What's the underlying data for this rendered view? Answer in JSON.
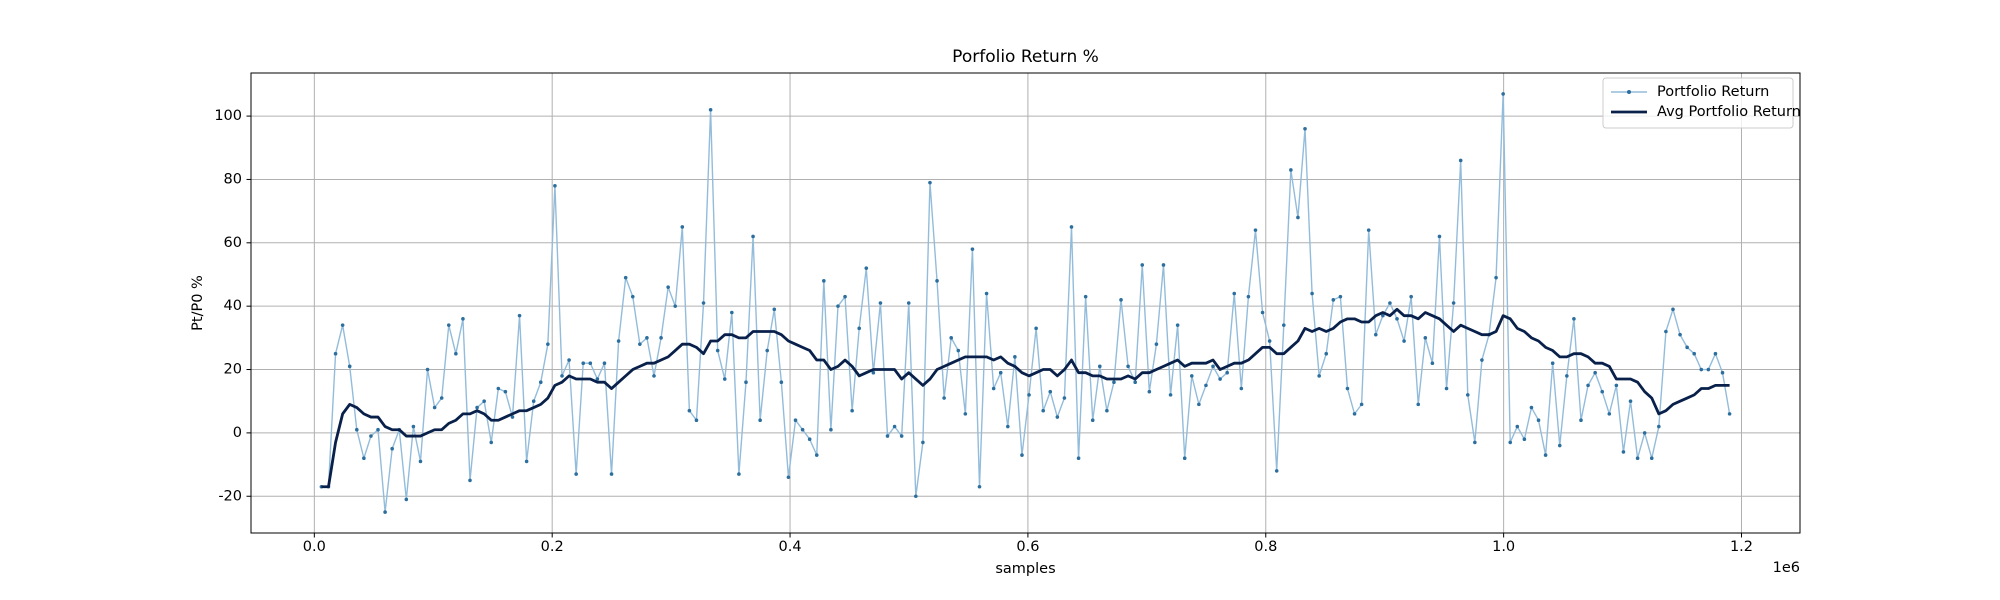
{
  "chart_data": {
    "type": "line",
    "title": "Porfolio Return %",
    "x_label": "samples",
    "y_label": "Pt/P0 %",
    "x_offset_label": "1e6",
    "x": [
      5950,
      11900,
      17850,
      23800,
      29750,
      35700,
      41650,
      47600,
      53550,
      59500,
      65450,
      71400,
      77350,
      83300,
      89250,
      95200,
      101150,
      107100,
      113050,
      119000,
      124950,
      130900,
      136850,
      142800,
      148750,
      154700,
      160650,
      166600,
      172550,
      178500,
      184450,
      190400,
      196350,
      202300,
      208250,
      214200,
      220150,
      226100,
      232050,
      238000,
      243950,
      249900,
      255850,
      261800,
      267750,
      273700,
      279650,
      285600,
      291550,
      297500,
      303450,
      309400,
      315350,
      321300,
      327250,
      333200,
      339150,
      345100,
      351050,
      357000,
      362950,
      368900,
      374850,
      380800,
      386750,
      392700,
      398650,
      404600,
      410550,
      416500,
      422450,
      428400,
      434350,
      440300,
      446250,
      452200,
      458150,
      464100,
      470050,
      476000,
      481950,
      487900,
      493850,
      499800,
      505750,
      511700,
      517650,
      523600,
      529550,
      535500,
      541450,
      547400,
      553350,
      559300,
      565250,
      571200,
      577150,
      583100,
      589050,
      595000,
      600950,
      606900,
      612850,
      618800,
      624750,
      630700,
      636650,
      642600,
      648550,
      654500,
      660450,
      666400,
      672350,
      678300,
      684250,
      690200,
      696150,
      702100,
      708050,
      714000,
      719950,
      725900,
      731850,
      737800,
      743750,
      749700,
      755650,
      761600,
      767550,
      773500,
      779450,
      785400,
      791350,
      797300,
      803250,
      809200,
      815150,
      821100,
      827050,
      833000,
      838950,
      844900,
      850850,
      856800,
      862750,
      868700,
      874650,
      880600,
      886550,
      892500,
      898450,
      904400,
      910350,
      916300,
      922250,
      928200,
      934150,
      940100,
      946050,
      952000,
      957950,
      963900,
      969850,
      975800,
      981750,
      987700,
      993650,
      999600,
      1005550,
      1011500,
      1017450,
      1023400,
      1029350,
      1035300,
      1041250,
      1047200,
      1053150,
      1059100,
      1065050,
      1071000,
      1076950,
      1082900,
      1088850,
      1094800,
      1100750,
      1106700,
      1112650,
      1118600,
      1124550,
      1130500,
      1136450,
      1142400,
      1148350,
      1154300,
      1160250,
      1166200,
      1172150,
      1178100,
      1184050,
      1190000
    ],
    "series": [
      {
        "name": "Portfolio Return",
        "color": "#93bcdb",
        "marker_color": "#2c6f9f",
        "marker": true,
        "line_width": 1.4,
        "values": [
          -17,
          -17,
          25,
          34,
          21,
          1,
          -8,
          -1,
          1,
          -25,
          -5,
          1,
          -21,
          2,
          -9,
          20,
          8,
          11,
          34,
          25,
          36,
          -15,
          8,
          10,
          -3,
          14,
          13,
          5,
          37,
          -9,
          10,
          16,
          28,
          78,
          18,
          23,
          -13,
          22,
          22,
          17,
          22,
          -13,
          29,
          49,
          43,
          28,
          30,
          18,
          30,
          46,
          40,
          65,
          7,
          4,
          41,
          102,
          26,
          17,
          38,
          -13,
          16,
          62,
          4,
          26,
          39,
          16,
          -14,
          4,
          1,
          -2,
          -7,
          48,
          1,
          40,
          43,
          7,
          33,
          52,
          19,
          41,
          -1,
          2,
          -1,
          41,
          -20,
          -3,
          79,
          48,
          11,
          30,
          26,
          6,
          58,
          -17,
          44,
          14,
          19,
          2,
          24,
          -7,
          12,
          33,
          7,
          13,
          5,
          11,
          65,
          -8,
          43,
          4,
          21,
          7,
          16,
          42,
          21,
          16,
          53,
          13,
          28,
          53,
          12,
          34,
          -8,
          18,
          9,
          15,
          21,
          17,
          19,
          44,
          14,
          43,
          64,
          38,
          29,
          -12,
          34,
          83,
          68,
          96,
          44,
          18,
          25,
          42,
          43,
          14,
          6,
          9,
          64,
          31,
          37,
          41,
          36,
          29,
          43,
          9,
          30,
          22,
          62,
          14,
          41,
          86,
          12,
          -3,
          23,
          31,
          49,
          107,
          -3,
          2,
          -2,
          8,
          4,
          -7,
          22,
          -4,
          18,
          36,
          4,
          15,
          19,
          13,
          6,
          15,
          -6,
          10,
          -8,
          0,
          -8,
          2,
          32,
          39,
          31,
          27,
          25,
          20,
          20,
          25,
          19,
          6
        ]
      },
      {
        "name": "Avg Portfolio Return",
        "color": "#08204a",
        "marker": false,
        "line_width": 2.8,
        "values": [
          -17,
          -17,
          -3,
          6,
          9,
          8,
          6,
          5,
          5,
          2,
          1,
          1,
          -1,
          -1,
          -1,
          0,
          1,
          1,
          3,
          4,
          6,
          6,
          7,
          6,
          4,
          4,
          5,
          6,
          7,
          7,
          8,
          9,
          11,
          15,
          16,
          18,
          17,
          17,
          17,
          16,
          16,
          14,
          16,
          18,
          20,
          21,
          22,
          22,
          23,
          24,
          26,
          28,
          28,
          27,
          25,
          29,
          29,
          31,
          31,
          30,
          30,
          32,
          32,
          32,
          32,
          31,
          29,
          28,
          27,
          26,
          23,
          23,
          20,
          21,
          23,
          21,
          18,
          19,
          20,
          20,
          20,
          20,
          17,
          19,
          17,
          15,
          17,
          20,
          21,
          22,
          23,
          24,
          24,
          24,
          24,
          23,
          24,
          22,
          21,
          19,
          18,
          19,
          20,
          20,
          18,
          20,
          23,
          19,
          19,
          18,
          18,
          17,
          17,
          17,
          18,
          17,
          19,
          19,
          20,
          21,
          22,
          23,
          21,
          22,
          22,
          22,
          23,
          20,
          21,
          22,
          22,
          23,
          25,
          27,
          27,
          25,
          25,
          27,
          29,
          33,
          32,
          33,
          32,
          33,
          35,
          36,
          36,
          35,
          35,
          37,
          38,
          37,
          39,
          37,
          37,
          36,
          38,
          37,
          36,
          34,
          32,
          34,
          33,
          32,
          31,
          31,
          32,
          37,
          36,
          33,
          32,
          30,
          29,
          27,
          26,
          24,
          24,
          25,
          25,
          24,
          22,
          22,
          21,
          17,
          17,
          17,
          16,
          13,
          11,
          6,
          7,
          9,
          10,
          11,
          12,
          14,
          14,
          15,
          15,
          15
        ]
      }
    ],
    "xlim": [
      -53252,
      1249202
    ],
    "ylim": [
      -31.6,
      113.6
    ],
    "xticks": [
      {
        "value": 0,
        "label": "0.0"
      },
      {
        "value": 200000,
        "label": "0.2"
      },
      {
        "value": 400000,
        "label": "0.4"
      },
      {
        "value": 600000,
        "label": "0.6"
      },
      {
        "value": 800000,
        "label": "0.8"
      },
      {
        "value": 1000000,
        "label": "1.0"
      },
      {
        "value": 1200000,
        "label": "1.2"
      }
    ],
    "yticks": [
      -20,
      0,
      20,
      40,
      60,
      80,
      100
    ],
    "grid": true,
    "legend": "upper-right"
  }
}
